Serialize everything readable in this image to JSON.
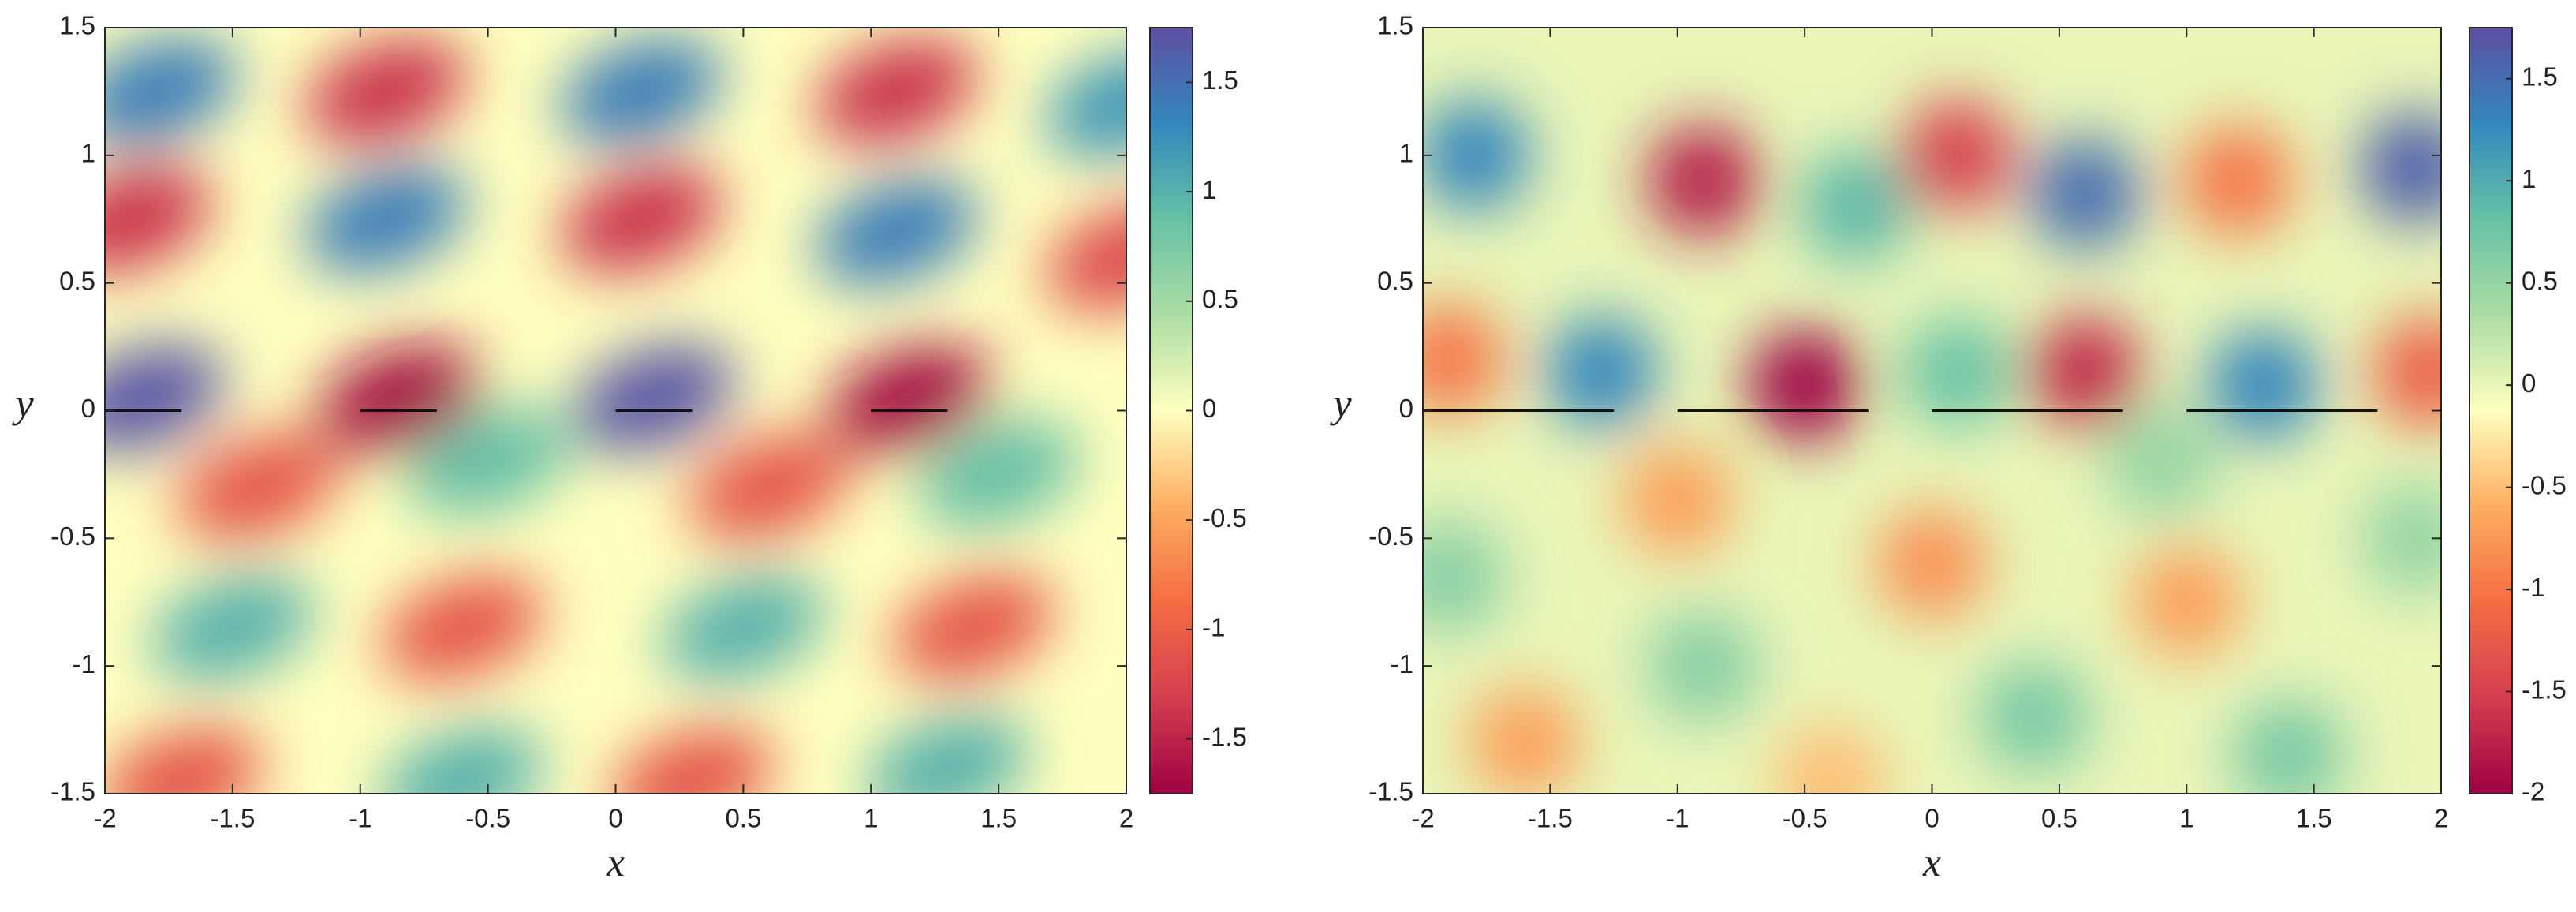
{
  "chart_data": [
    {
      "type": "heatmap",
      "xlabel": "x",
      "ylabel": "y",
      "xlim": [
        -2,
        2
      ],
      "ylim": [
        -1.5,
        1.5
      ],
      "xticks": [
        -2,
        -1.5,
        -1,
        -0.5,
        0,
        0.5,
        1,
        1.5,
        2
      ],
      "yticks": [
        -1.5,
        -1,
        -0.5,
        0,
        0.5,
        1,
        1.5
      ],
      "clim": [
        -1.75,
        1.75
      ],
      "cticks": [
        -1.5,
        -1,
        -0.5,
        0,
        0.5,
        1,
        1.5
      ],
      "colormap": [
        "#9e0142",
        "#d53e4f",
        "#f46d43",
        "#fdae61",
        "#ffffbf",
        "#abdda4",
        "#66c2a5",
        "#3288bd",
        "#5e4fa2"
      ],
      "segments": [
        {
          "x": [
            -2,
            -1.7
          ],
          "y": 0
        },
        {
          "x": [
            -1,
            -0.7
          ],
          "y": 0
        },
        {
          "x": [
            0,
            0.3
          ],
          "y": 0
        },
        {
          "x": [
            1,
            1.3
          ],
          "y": 0
        }
      ],
      "peaks": [
        {
          "x": -1.8,
          "y": 1.25,
          "value": 1.4
        },
        {
          "x": -0.9,
          "y": 1.25,
          "value": -1.4
        },
        {
          "x": 0.1,
          "y": 1.25,
          "value": 1.4
        },
        {
          "x": 1.1,
          "y": 1.25,
          "value": -1.4
        },
        {
          "x": 2.0,
          "y": 1.2,
          "value": 1.2
        },
        {
          "x": -1.9,
          "y": 0.75,
          "value": -1.4
        },
        {
          "x": -0.9,
          "y": 0.75,
          "value": 1.4
        },
        {
          "x": 0.1,
          "y": 0.75,
          "value": -1.4
        },
        {
          "x": 1.1,
          "y": 0.7,
          "value": 1.4
        },
        {
          "x": 2.0,
          "y": 0.6,
          "value": -1.2
        },
        {
          "x": -1.85,
          "y": 0.05,
          "value": 1.7
        },
        {
          "x": -0.85,
          "y": 0.05,
          "value": -1.7
        },
        {
          "x": 0.15,
          "y": 0.05,
          "value": 1.7
        },
        {
          "x": 1.15,
          "y": 0.05,
          "value": -1.7
        },
        {
          "x": -1.4,
          "y": -0.3,
          "value": -1.1
        },
        {
          "x": -0.5,
          "y": -0.2,
          "value": 0.9
        },
        {
          "x": 0.6,
          "y": -0.3,
          "value": -1.1
        },
        {
          "x": 1.5,
          "y": -0.25,
          "value": 0.9
        },
        {
          "x": -1.5,
          "y": -0.85,
          "value": 1.0
        },
        {
          "x": -0.6,
          "y": -0.85,
          "value": -1.1
        },
        {
          "x": 0.5,
          "y": -0.85,
          "value": 1.0
        },
        {
          "x": 1.4,
          "y": -0.85,
          "value": -1.1
        },
        {
          "x": -1.7,
          "y": -1.45,
          "value": -1.1
        },
        {
          "x": -0.6,
          "y": -1.45,
          "value": 1.0
        },
        {
          "x": 0.3,
          "y": -1.45,
          "value": -1.1
        },
        {
          "x": 1.3,
          "y": -1.4,
          "value": 1.0
        }
      ]
    },
    {
      "type": "heatmap",
      "xlabel": "x",
      "ylabel": "y",
      "xlim": [
        -2,
        2
      ],
      "ylim": [
        -1.5,
        1.5
      ],
      "xticks": [
        -2,
        -1.5,
        -1,
        -0.5,
        0,
        0.5,
        1,
        1.5,
        2
      ],
      "yticks": [
        -1.5,
        -1,
        -0.5,
        0,
        0.5,
        1,
        1.5
      ],
      "clim": [
        -2,
        1.75
      ],
      "cticks": [
        -2,
        -1.5,
        -1,
        -0.5,
        0,
        0.5,
        1,
        1.5
      ],
      "colormap": [
        "#9e0142",
        "#d53e4f",
        "#f46d43",
        "#fdae61",
        "#ffffbf",
        "#abdda4",
        "#66c2a5",
        "#3288bd",
        "#5e4fa2"
      ],
      "segments": [
        {
          "x": [
            -2,
            -1.25
          ],
          "y": 0
        },
        {
          "x": [
            -1,
            -0.25
          ],
          "y": 0
        },
        {
          "x": [
            0,
            0.75
          ],
          "y": 0
        },
        {
          "x": [
            1,
            1.75
          ],
          "y": 0
        }
      ],
      "peaks": [
        {
          "x": -1.8,
          "y": 1.0,
          "value": 1.3
        },
        {
          "x": -0.9,
          "y": 0.9,
          "value": -1.8
        },
        {
          "x": -0.3,
          "y": 0.8,
          "value": 0.9
        },
        {
          "x": 0.1,
          "y": 1.0,
          "value": -1.5
        },
        {
          "x": 0.6,
          "y": 0.85,
          "value": 1.5
        },
        {
          "x": 1.2,
          "y": 0.9,
          "value": -1.0
        },
        {
          "x": 1.9,
          "y": 0.95,
          "value": 1.6
        },
        {
          "x": -1.9,
          "y": 0.2,
          "value": -1.0
        },
        {
          "x": -1.3,
          "y": 0.15,
          "value": 1.3
        },
        {
          "x": -0.5,
          "y": 0.1,
          "value": -2
        },
        {
          "x": 0.1,
          "y": 0.15,
          "value": 0.8
        },
        {
          "x": 0.6,
          "y": 0.15,
          "value": -1.7
        },
        {
          "x": 1.3,
          "y": 0.1,
          "value": 1.3
        },
        {
          "x": 1.95,
          "y": 0.15,
          "value": -1.2
        },
        {
          "x": -1.0,
          "y": -0.35,
          "value": -0.7
        },
        {
          "x": 0.0,
          "y": -0.6,
          "value": -0.8
        },
        {
          "x": 1.0,
          "y": -0.75,
          "value": -0.7
        },
        {
          "x": -1.9,
          "y": -0.65,
          "value": 0.6
        },
        {
          "x": -0.9,
          "y": -1.0,
          "value": 0.6
        },
        {
          "x": 0.4,
          "y": -1.2,
          "value": 0.7
        },
        {
          "x": 1.4,
          "y": -1.35,
          "value": 0.7
        },
        {
          "x": -1.6,
          "y": -1.3,
          "value": -0.7
        },
        {
          "x": -0.4,
          "y": -1.45,
          "value": -0.5
        },
        {
          "x": 1.9,
          "y": -0.5,
          "value": 0.5
        },
        {
          "x": 0.9,
          "y": -0.2,
          "value": 0.5
        }
      ]
    }
  ]
}
